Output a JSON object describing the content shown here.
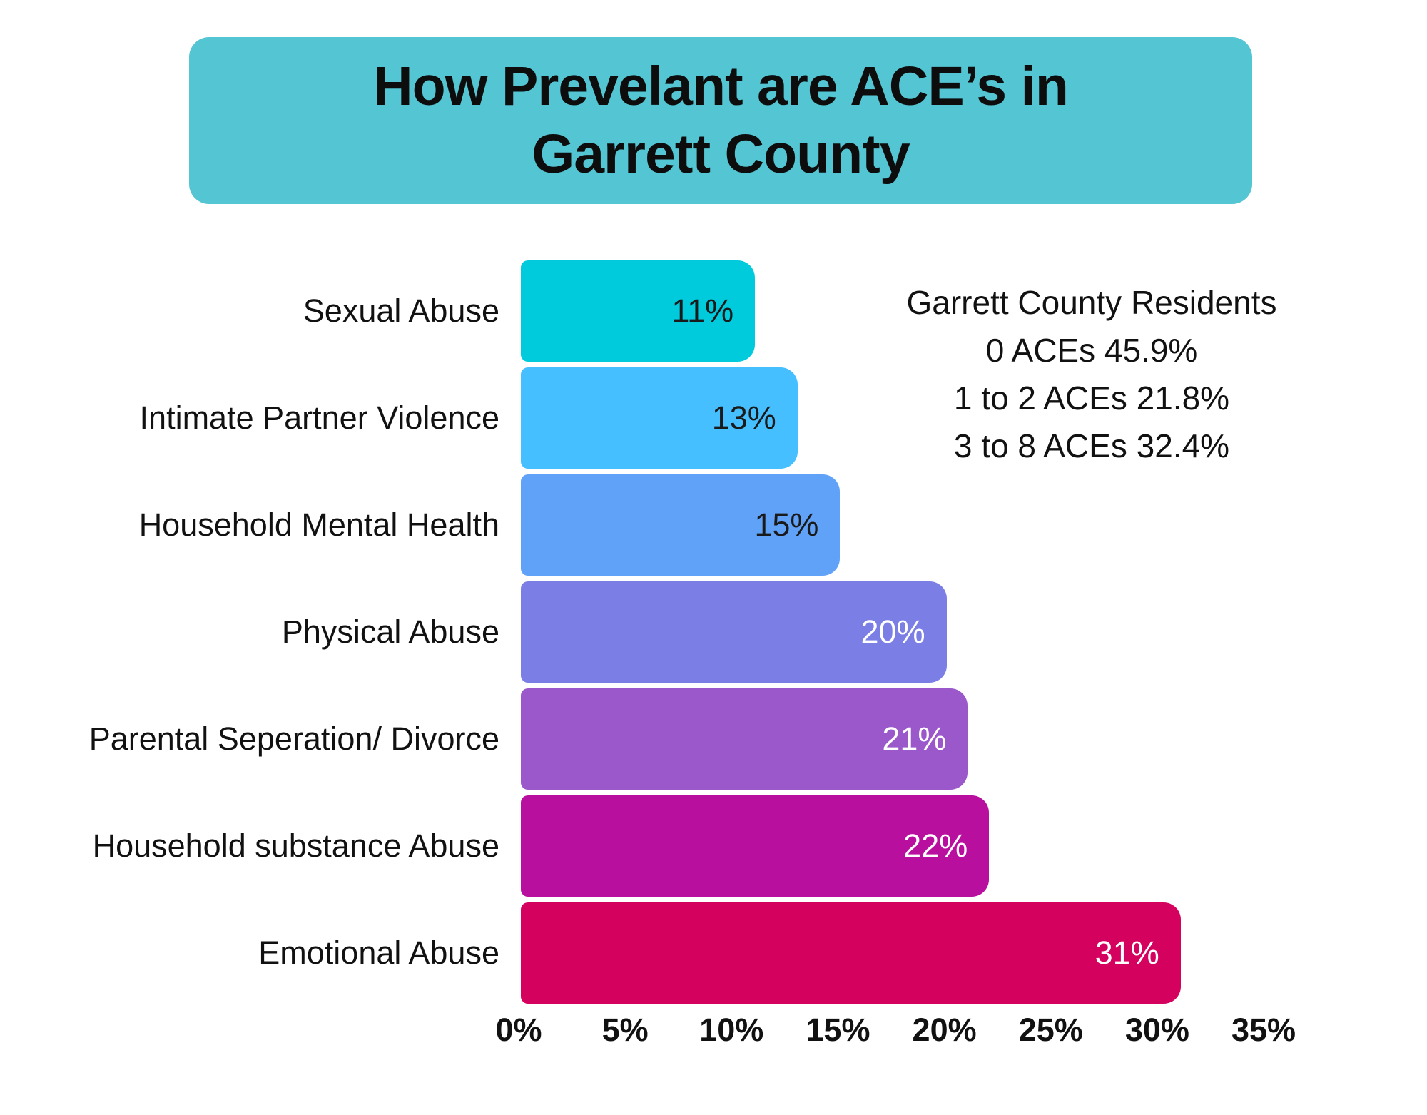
{
  "title": {
    "line1": "How Prevelant are ACE’s in",
    "line2": "Garrett County",
    "banner_color": "#54C5D3",
    "text_color": "#0d0d0d"
  },
  "annotation": {
    "lines": [
      "Garrett County Residents",
      "0 ACEs 45.9%",
      "1 to 2 ACEs 21.8%",
      "3 to 8 ACEs 32.4%"
    ]
  },
  "chart_data": {
    "type": "bar",
    "orientation": "horizontal",
    "title": "How Prevelant are ACE’s in Garrett County",
    "categories": [
      "Sexual Abuse",
      "Intimate Partner Violence",
      "Household Mental Health",
      "Physical Abuse",
      "Parental Seperation/ Divorce",
      "Household substance Abuse",
      "Emotional Abuse"
    ],
    "values": [
      11,
      13,
      15,
      20,
      21,
      22,
      31
    ],
    "value_labels": [
      "11%",
      "13%",
      "15%",
      "20%",
      "21%",
      "22%",
      "31%"
    ],
    "bar_colors": [
      "#00CBDD",
      "#45BFFF",
      "#60A2F8",
      "#7B7FE5",
      "#9A58CB",
      "#B90F9F",
      "#D5015E"
    ],
    "value_label_colors": [
      "#1a1a1a",
      "#1a1a1a",
      "#1a1a1a",
      "#ffffff",
      "#ffffff",
      "#ffffff",
      "#ffffff"
    ],
    "x_ticks": [
      "0%",
      "5%",
      "10%",
      "15%",
      "20%",
      "25%",
      "30%",
      "35%"
    ],
    "xlim": [
      0,
      35
    ],
    "grid": false,
    "legend": false,
    "background": "#ffffff"
  }
}
